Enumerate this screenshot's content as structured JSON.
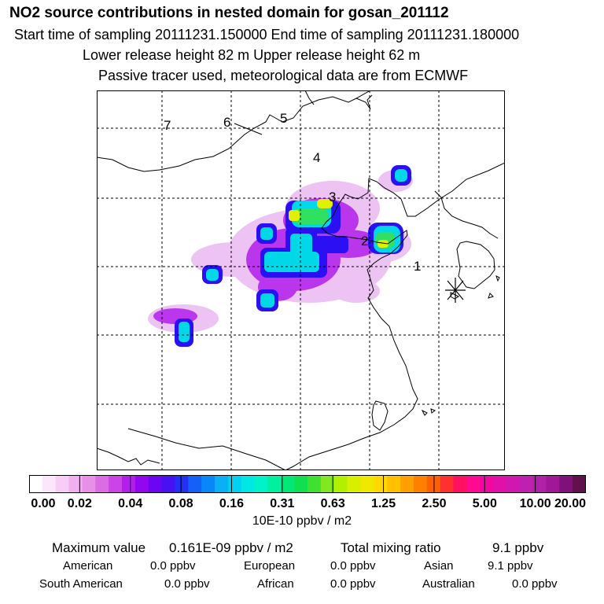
{
  "header": {
    "title": "NO2 source contributions in nested domain for gosan_201112",
    "line1": "Start time of sampling 20111231.150000     End time of sampling 20111231.180000",
    "line2": "Lower release height   82 m          Upper release height   62 m",
    "line3": "Passive tracer used, meteorological data are from ECMWF"
  },
  "map": {
    "region_labels": [
      "1",
      "2",
      "3",
      "4",
      "5",
      "6",
      "7"
    ],
    "receptor_marker": "asterisk-icon"
  },
  "colorbar": {
    "tick_labels": [
      "0.00",
      "0.02",
      "0.04",
      "0.08",
      "0.16",
      "0.31",
      "0.63",
      "1.25",
      "2.50",
      "5.00",
      "10.00",
      "20.00"
    ],
    "units": "10E-10 ppbv / m2",
    "colors": [
      "#ffffff",
      "#fbe6fb",
      "#f7ccf7",
      "#f0b0f0",
      "#e890e8",
      "#dc6ce4",
      "#cc44e6",
      "#b21eec",
      "#9206f0",
      "#6a06f2",
      "#4a10f4",
      "#2030f6",
      "#1560f8",
      "#0888f8",
      "#0ab0f6",
      "#00d0f2",
      "#00e8e4",
      "#00f2c8",
      "#00f0a0",
      "#00e878",
      "#10e050",
      "#40e030",
      "#80e820",
      "#b0f000",
      "#d8f000",
      "#f0e800",
      "#ffd800",
      "#ffc000",
      "#ffa000",
      "#ff8000",
      "#ff6000",
      "#ff3030",
      "#ff1060",
      "#ff0a90",
      "#f008a0",
      "#e010a8",
      "#d018b0",
      "#c020b0",
      "#b020a8",
      "#a01898",
      "#80107a",
      "#60104a"
    ]
  },
  "footer": {
    "maximum_label": "Maximum value",
    "maximum_value": "0.161E-09 ppbv / m2",
    "total_label": "Total mixing ratio",
    "total_value": "9.1 ppbv",
    "regions": [
      {
        "name": "American",
        "value": "0.0 ppbv"
      },
      {
        "name": "European",
        "value": "0.0 ppbv"
      },
      {
        "name": "Asian",
        "value": "9.1 ppbv"
      },
      {
        "name": "South American",
        "value": "0.0 ppbv"
      },
      {
        "name": "African",
        "value": "0.0 ppbv"
      },
      {
        "name": "Australian",
        "value": "0.0 ppbv"
      }
    ]
  }
}
